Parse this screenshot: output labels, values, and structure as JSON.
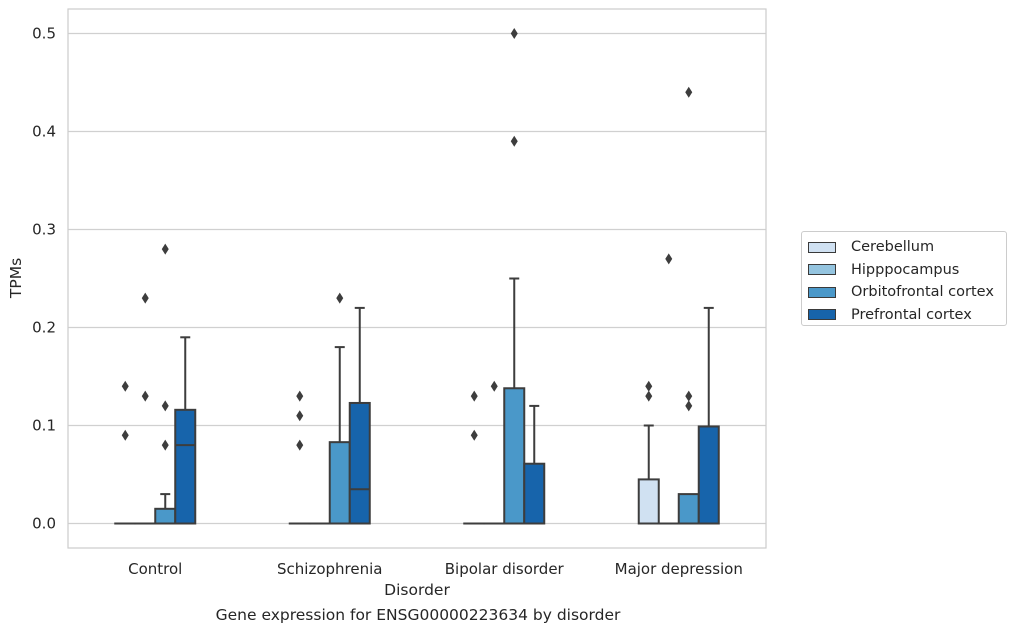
{
  "chart_data": {
    "type": "box",
    "xlabel": "Disorder",
    "ylabel": "TPMs",
    "caption": "Gene expression for ENSG00000223634 by disorder",
    "categories": [
      "Control",
      "Schizophrenia",
      "Bipolar disorder",
      "Major depression"
    ],
    "yticks": [
      "0.0",
      "0.1",
      "0.2",
      "0.3",
      "0.4",
      "0.5"
    ],
    "ylim": [
      -0.025,
      0.525
    ],
    "grid": true,
    "legend_position": "right",
    "series": [
      {
        "name": "Cerebellum",
        "color": "#d0e1f2",
        "boxes": [
          {
            "q1": 0,
            "median": 0,
            "q3": 0,
            "whisker_low": 0,
            "whisker_high": 0,
            "outliers": [
              0.09,
              0.14
            ]
          },
          {
            "q1": 0,
            "median": 0,
            "q3": 0,
            "whisker_low": 0,
            "whisker_high": 0,
            "outliers": [
              0.08,
              0.11,
              0.13
            ]
          },
          {
            "q1": 0,
            "median": 0,
            "q3": 0,
            "whisker_low": 0,
            "whisker_high": 0,
            "outliers": [
              0.09,
              0.13
            ]
          },
          {
            "q1": 0,
            "median": 0,
            "q3": 0.045,
            "whisker_low": 0,
            "whisker_high": 0.1,
            "outliers": [
              0.13,
              0.14
            ]
          }
        ]
      },
      {
        "name": "Hipppocampus",
        "color": "#94c4df",
        "boxes": [
          {
            "q1": 0,
            "median": 0,
            "q3": 0,
            "whisker_low": 0,
            "whisker_high": 0,
            "outliers": [
              0.13,
              0.23
            ]
          },
          {
            "q1": 0,
            "median": 0,
            "q3": 0,
            "whisker_low": 0,
            "whisker_high": 0,
            "outliers": []
          },
          {
            "q1": 0,
            "median": 0,
            "q3": 0,
            "whisker_low": 0,
            "whisker_high": 0,
            "outliers": [
              0.14
            ]
          },
          {
            "q1": 0,
            "median": 0,
            "q3": 0,
            "whisker_low": 0,
            "whisker_high": 0,
            "outliers": [
              0.27
            ]
          }
        ]
      },
      {
        "name": "Orbitofrontal cortex",
        "color": "#4a98c9",
        "boxes": [
          {
            "q1": 0,
            "median": 0,
            "q3": 0.015,
            "whisker_low": 0,
            "whisker_high": 0.03,
            "outliers": [
              0.08,
              0.12,
              0.28
            ]
          },
          {
            "q1": 0,
            "median": 0,
            "q3": 0.083,
            "whisker_low": 0,
            "whisker_high": 0.18,
            "outliers": [
              0.23
            ]
          },
          {
            "q1": 0,
            "median": 0,
            "q3": 0.138,
            "whisker_low": 0,
            "whisker_high": 0.25,
            "outliers": [
              0.39,
              0.5
            ]
          },
          {
            "q1": 0,
            "median": 0,
            "q3": 0.03,
            "whisker_low": 0,
            "whisker_high": 0.03,
            "outliers": [
              0.12,
              0.13,
              0.44
            ]
          }
        ]
      },
      {
        "name": "Prefrontal cortex",
        "color": "#1764ab",
        "boxes": [
          {
            "q1": 0,
            "median": 0.08,
            "q3": 0.116,
            "whisker_low": 0,
            "whisker_high": 0.19,
            "outliers": []
          },
          {
            "q1": 0,
            "median": 0.035,
            "q3": 0.123,
            "whisker_low": 0,
            "whisker_high": 0.22,
            "outliers": []
          },
          {
            "q1": 0,
            "median": 0,
            "q3": 0.061,
            "whisker_low": 0,
            "whisker_high": 0.12,
            "outliers": []
          },
          {
            "q1": 0,
            "median": 0,
            "q3": 0.099,
            "whisker_low": 0,
            "whisker_high": 0.22,
            "outliers": []
          }
        ]
      }
    ]
  }
}
